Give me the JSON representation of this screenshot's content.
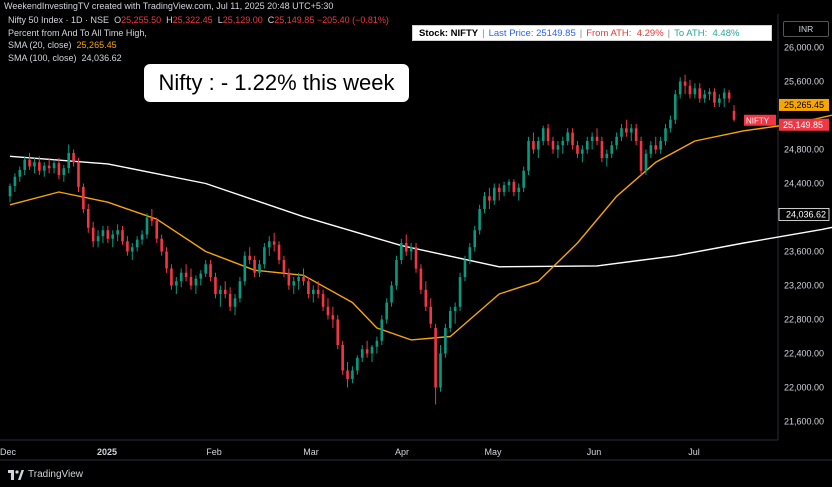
{
  "header": {
    "caption": "WeekendInvestingTV created with TradingView.com, Jul 11, 2025 20:48 UTC+5:30",
    "symbol_line": "Nifty 50 Index · 1D · NSE",
    "ohlc": {
      "o": "25,255.50",
      "h": "25,322.45",
      "l": "25,129.00",
      "c": "25,149.85",
      "chg": "−205.40 (−0.81%)"
    },
    "indicator_pct": "Percent from And To All Time High,",
    "sma20_label": "SMA (20, close)",
    "sma20_value": "25,265.45",
    "sma100_label": "SMA (100, close)",
    "sma100_value": "24,036.62"
  },
  "info_bar": {
    "stock": "Stock: NIFTY",
    "last_price": "Last Price: 25149.85",
    "from_ath_label": "From ATH:",
    "from_ath_value": "4.29%",
    "to_ath_label": "To ATH:",
    "to_ath_value": "4.48%"
  },
  "currency": "INR",
  "annotation": "Nifty : - 1.22% this week",
  "footer": {
    "brand": "TradingView"
  },
  "colors": {
    "up": "#089981",
    "down": "#f23645",
    "sma20": "#f7a600",
    "sma100": "#ffffff",
    "bg": "#000000"
  },
  "chart_data": {
    "type": "candlestick",
    "y_ticks": [
      "26,000.00",
      "25,600.00",
      "24,800.00",
      "24,400.00",
      "23,600.00",
      "23,200.00",
      "22,800.00",
      "22,400.00",
      "22,000.00",
      "21,600.00"
    ],
    "x_ticks": [
      "Dec",
      "2025",
      "Feb",
      "Mar",
      "Apr",
      "May",
      "Jun",
      "Jul"
    ],
    "ylim": [
      21450,
      26300
    ],
    "price_labels": [
      {
        "value": 25265.45,
        "text": "25,265.45",
        "color": "#f7a600",
        "kind": "sma20"
      },
      {
        "value": 25149.85,
        "text": "NIFTY   25,149.85",
        "color": "#f23645",
        "kind": "last"
      },
      {
        "value": 24036.62,
        "text": "24,036.62",
        "color": "#ffffff",
        "kind": "sma100"
      }
    ],
    "candles": [
      [
        24250,
        24400,
        24180,
        24370
      ],
      [
        24370,
        24520,
        24300,
        24480
      ],
      [
        24480,
        24600,
        24420,
        24560
      ],
      [
        24560,
        24720,
        24500,
        24680
      ],
      [
        24680,
        24760,
        24560,
        24600
      ],
      [
        24600,
        24700,
        24520,
        24650
      ],
      [
        24650,
        24720,
        24500,
        24550
      ],
      [
        24550,
        24650,
        24480,
        24610
      ],
      [
        24610,
        24700,
        24520,
        24580
      ],
      [
        24580,
        24680,
        24520,
        24640
      ],
      [
        24640,
        24700,
        24450,
        24500
      ],
      [
        24500,
        24620,
        24420,
        24580
      ],
      [
        24580,
        24860,
        24520,
        24760
      ],
      [
        24760,
        24800,
        24600,
        24650
      ],
      [
        24650,
        24700,
        24300,
        24360
      ],
      [
        24360,
        24400,
        24050,
        24100
      ],
      [
        24100,
        24160,
        23820,
        23880
      ],
      [
        23880,
        23950,
        23650,
        23720
      ],
      [
        23720,
        23850,
        23650,
        23780
      ],
      [
        23780,
        23900,
        23700,
        23850
      ],
      [
        23850,
        23900,
        23700,
        23750
      ],
      [
        23750,
        23850,
        23650,
        23800
      ],
      [
        23800,
        23920,
        23720,
        23850
      ],
      [
        23850,
        23900,
        23680,
        23720
      ],
      [
        23720,
        23780,
        23550,
        23600
      ],
      [
        23600,
        23700,
        23500,
        23650
      ],
      [
        23650,
        23780,
        23600,
        23740
      ],
      [
        23740,
        23850,
        23680,
        23800
      ],
      [
        23800,
        24050,
        23750,
        24000
      ],
      [
        24000,
        24100,
        23900,
        23960
      ],
      [
        23960,
        24000,
        23700,
        23750
      ],
      [
        23750,
        23800,
        23550,
        23600
      ],
      [
        23600,
        23650,
        23350,
        23400
      ],
      [
        23400,
        23450,
        23150,
        23200
      ],
      [
        23200,
        23300,
        23100,
        23250
      ],
      [
        23250,
        23400,
        23180,
        23350
      ],
      [
        23350,
        23450,
        23250,
        23300
      ],
      [
        23300,
        23400,
        23150,
        23200
      ],
      [
        23200,
        23320,
        23100,
        23280
      ],
      [
        23280,
        23380,
        23200,
        23340
      ],
      [
        23340,
        23500,
        23300,
        23450
      ],
      [
        23450,
        23500,
        23250,
        23300
      ],
      [
        23300,
        23350,
        23050,
        23100
      ],
      [
        23100,
        23200,
        22950,
        23150
      ],
      [
        23150,
        23250,
        23050,
        23100
      ],
      [
        23100,
        23180,
        22900,
        22950
      ],
      [
        22950,
        23100,
        22850,
        23050
      ],
      [
        23050,
        23300,
        23000,
        23250
      ],
      [
        23250,
        23600,
        23200,
        23550
      ],
      [
        23550,
        23650,
        23450,
        23500
      ],
      [
        23500,
        23550,
        23300,
        23350
      ],
      [
        23350,
        23500,
        23300,
        23450
      ],
      [
        23450,
        23700,
        23400,
        23650
      ],
      [
        23650,
        23780,
        23550,
        23720
      ],
      [
        23720,
        23820,
        23600,
        23680
      ],
      [
        23680,
        23720,
        23450,
        23500
      ],
      [
        23500,
        23550,
        23300,
        23350
      ],
      [
        23350,
        23400,
        23150,
        23200
      ],
      [
        23200,
        23300,
        23100,
        23250
      ],
      [
        23250,
        23350,
        23150,
        23300
      ],
      [
        23300,
        23400,
        23200,
        23250
      ],
      [
        23250,
        23300,
        23050,
        23100
      ],
      [
        23100,
        23200,
        23000,
        23150
      ],
      [
        23150,
        23250,
        23050,
        23100
      ],
      [
        23100,
        23150,
        22900,
        22950
      ],
      [
        22950,
        23050,
        22800,
        22850
      ],
      [
        22850,
        22950,
        22700,
        22800
      ],
      [
        22800,
        22850,
        22450,
        22500
      ],
      [
        22500,
        22550,
        22150,
        22200
      ],
      [
        22200,
        22300,
        22000,
        22100
      ],
      [
        22100,
        22250,
        22050,
        22200
      ],
      [
        22200,
        22380,
        22150,
        22350
      ],
      [
        22350,
        22500,
        22300,
        22450
      ],
      [
        22450,
        22550,
        22350,
        22400
      ],
      [
        22400,
        22500,
        22300,
        22480
      ],
      [
        22480,
        22600,
        22400,
        22550
      ],
      [
        22550,
        22850,
        22500,
        22800
      ],
      [
        22800,
        23050,
        22750,
        23000
      ],
      [
        23000,
        23250,
        22950,
        23200
      ],
      [
        23200,
        23550,
        23150,
        23500
      ],
      [
        23500,
        23750,
        23450,
        23700
      ],
      [
        23700,
        23800,
        23550,
        23600
      ],
      [
        23600,
        23700,
        23500,
        23650
      ],
      [
        23650,
        23700,
        23350,
        23400
      ],
      [
        23400,
        23450,
        23100,
        23150
      ],
      [
        23150,
        23250,
        22900,
        22950
      ],
      [
        22950,
        23050,
        22700,
        22750
      ],
      [
        22700,
        22750,
        21800,
        22000
      ],
      [
        22000,
        22500,
        21950,
        22400
      ],
      [
        22400,
        22750,
        22350,
        22700
      ],
      [
        22700,
        22950,
        22650,
        22900
      ],
      [
        22900,
        23000,
        22750,
        22950
      ],
      [
        22950,
        23350,
        22900,
        23300
      ],
      [
        23300,
        23550,
        23250,
        23500
      ],
      [
        23500,
        23700,
        23450,
        23650
      ],
      [
        23650,
        23900,
        23600,
        23850
      ],
      [
        23850,
        24150,
        23800,
        24100
      ],
      [
        24100,
        24300,
        24050,
        24250
      ],
      [
        24250,
        24350,
        24100,
        24200
      ],
      [
        24200,
        24400,
        24150,
        24350
      ],
      [
        24350,
        24400,
        24200,
        24300
      ],
      [
        24300,
        24420,
        24250,
        24380
      ],
      [
        24380,
        24450,
        24300,
        24420
      ],
      [
        24420,
        24450,
        24250,
        24300
      ],
      [
        24300,
        24400,
        24200,
        24350
      ],
      [
        24350,
        24600,
        24300,
        24550
      ],
      [
        24550,
        24950,
        24500,
        24900
      ],
      [
        24900,
        25000,
        24750,
        24800
      ],
      [
        24800,
        24950,
        24700,
        24900
      ],
      [
        24900,
        25080,
        24850,
        25050
      ],
      [
        25050,
        25100,
        24850,
        24900
      ],
      [
        24900,
        24950,
        24750,
        24800
      ],
      [
        24800,
        24900,
        24700,
        24850
      ],
      [
        24850,
        24950,
        24750,
        24900
      ],
      [
        24900,
        25050,
        24850,
        25000
      ],
      [
        25000,
        25050,
        24800,
        24850
      ],
      [
        24850,
        24900,
        24700,
        24750
      ],
      [
        24750,
        24850,
        24650,
        24800
      ],
      [
        24800,
        24950,
        24750,
        24900
      ],
      [
        24900,
        25000,
        24800,
        24950
      ],
      [
        24950,
        25050,
        24850,
        24900
      ],
      [
        24900,
        24950,
        24650,
        24700
      ],
      [
        24700,
        24800,
        24600,
        24750
      ],
      [
        24750,
        24900,
        24700,
        24850
      ],
      [
        24850,
        25000,
        24800,
        24950
      ],
      [
        24950,
        25100,
        24900,
        25050
      ],
      [
        25050,
        25150,
        24950,
        25000
      ],
      [
        25000,
        25100,
        24900,
        25050
      ],
      [
        25050,
        25100,
        24850,
        24900
      ],
      [
        24900,
        24950,
        24500,
        24550
      ],
      [
        24550,
        24800,
        24500,
        24750
      ],
      [
        24750,
        24900,
        24700,
        24850
      ],
      [
        24850,
        24950,
        24750,
        24800
      ],
      [
        24800,
        24950,
        24750,
        24900
      ],
      [
        24900,
        25100,
        24850,
        25050
      ],
      [
        25050,
        25200,
        25000,
        25150
      ],
      [
        25150,
        25500,
        25100,
        25450
      ],
      [
        25450,
        25650,
        25400,
        25600
      ],
      [
        25600,
        25680,
        25450,
        25550
      ],
      [
        25550,
        25620,
        25400,
        25450
      ],
      [
        25450,
        25580,
        25400,
        25520
      ],
      [
        25520,
        25580,
        25350,
        25400
      ],
      [
        25400,
        25500,
        25350,
        25450
      ],
      [
        25450,
        25520,
        25380,
        25480
      ],
      [
        25480,
        25520,
        25300,
        25350
      ],
      [
        25350,
        25450,
        25300,
        25400
      ],
      [
        25400,
        25520,
        25300,
        25470
      ],
      [
        25470,
        25500,
        25350,
        25400
      ],
      [
        25255.5,
        25322.45,
        25129,
        25149.85
      ]
    ],
    "sma20": [
      [
        0,
        24150
      ],
      [
        10,
        24300
      ],
      [
        20,
        24180
      ],
      [
        30,
        23980
      ],
      [
        40,
        23600
      ],
      [
        50,
        23380
      ],
      [
        60,
        23320
      ],
      [
        70,
        23000
      ],
      [
        75,
        22700
      ],
      [
        82,
        22560
      ],
      [
        90,
        22600
      ],
      [
        100,
        23100
      ],
      [
        108,
        23250
      ],
      [
        116,
        23700
      ],
      [
        124,
        24250
      ],
      [
        132,
        24650
      ],
      [
        140,
        24900
      ],
      [
        150,
        25020
      ],
      [
        160,
        25100
      ],
      [
        170,
        25230
      ],
      [
        181,
        25265
      ]
    ],
    "sma100": [
      [
        0,
        24720
      ],
      [
        20,
        24630
      ],
      [
        40,
        24400
      ],
      [
        60,
        24010
      ],
      [
        80,
        23670
      ],
      [
        100,
        23420
      ],
      [
        120,
        23430
      ],
      [
        136,
        23550
      ],
      [
        150,
        23700
      ],
      [
        166,
        23860
      ],
      [
        181,
        24036.62
      ]
    ]
  }
}
